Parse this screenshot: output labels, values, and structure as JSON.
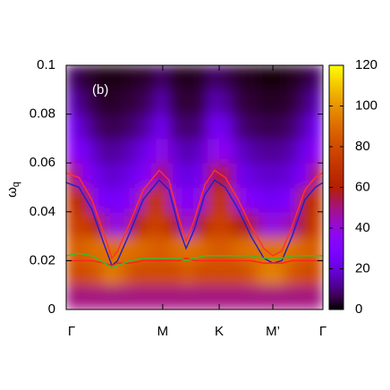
{
  "chart_data": {
    "type": "heatmap",
    "annotation": "(b)",
    "ylabel": {
      "base": "ω",
      "sub": "q"
    },
    "xlim": [
      0,
      1
    ],
    "xticks": [
      {
        "value": 0,
        "label": "Γ"
      },
      {
        "value": 0.376,
        "label": "M"
      },
      {
        "value": 0.596,
        "label": "K"
      },
      {
        "value": 0.805,
        "label": "M’"
      },
      {
        "value": 1,
        "label": "Γ"
      }
    ],
    "ylim": [
      0,
      0.1
    ],
    "yticks": [
      0,
      0.02,
      0.04,
      0.06,
      0.08,
      0.1
    ],
    "zlim": [
      0,
      120
    ],
    "zticks": [
      0,
      20,
      40,
      60,
      80,
      100,
      120
    ],
    "zx_edges": [
      0,
      0.05,
      0.1,
      0.15,
      0.2,
      0.25,
      0.3,
      0.35,
      0.4,
      0.45,
      0.5,
      0.55,
      0.6,
      0.65,
      0.7,
      0.75,
      0.8,
      0.85,
      0.9,
      0.95,
      1
    ],
    "zy_edges": [
      0,
      0.01,
      0.02,
      0.03,
      0.04,
      0.05,
      0.06,
      0.07,
      0.08,
      0.09,
      0.1
    ],
    "z": [
      [
        50,
        50,
        50,
        50,
        50,
        50,
        50,
        50,
        50,
        50,
        50,
        50,
        50,
        50,
        50,
        50,
        50,
        50,
        50,
        50
      ],
      [
        80,
        80,
        85,
        95,
        88,
        80,
        80,
        80,
        80,
        85,
        80,
        80,
        80,
        80,
        85,
        95,
        95,
        85,
        80,
        80
      ],
      [
        85,
        88,
        92,
        90,
        92,
        90,
        88,
        85,
        90,
        92,
        90,
        85,
        85,
        90,
        92,
        92,
        92,
        92,
        88,
        85
      ],
      [
        75,
        75,
        60,
        40,
        40,
        60,
        75,
        75,
        60,
        40,
        60,
        75,
        75,
        60,
        55,
        40,
        40,
        45,
        60,
        75
      ],
      [
        70,
        60,
        30,
        25,
        28,
        40,
        70,
        70,
        40,
        28,
        40,
        70,
        70,
        40,
        30,
        25,
        25,
        30,
        60,
        70
      ],
      [
        55,
        35,
        22,
        18,
        20,
        25,
        35,
        55,
        25,
        20,
        25,
        55,
        55,
        25,
        20,
        18,
        18,
        20,
        30,
        55
      ],
      [
        35,
        25,
        15,
        12,
        14,
        18,
        25,
        38,
        18,
        14,
        18,
        38,
        35,
        18,
        14,
        12,
        12,
        14,
        22,
        35
      ],
      [
        25,
        15,
        8,
        6,
        7,
        10,
        15,
        25,
        10,
        8,
        10,
        25,
        22,
        10,
        7,
        6,
        6,
        8,
        14,
        25
      ],
      [
        15,
        8,
        4,
        3,
        4,
        5,
        8,
        15,
        5,
        4,
        5,
        15,
        12,
        5,
        4,
        3,
        3,
        4,
        8,
        15
      ],
      [
        8,
        4,
        2,
        1,
        2,
        3,
        4,
        8,
        3,
        2,
        3,
        8,
        6,
        3,
        2,
        1,
        1,
        2,
        4,
        8
      ]
    ],
    "x": [
      0,
      0.05,
      0.1,
      0.15,
      0.178,
      0.2,
      0.25,
      0.3,
      0.362,
      0.4,
      0.44,
      0.467,
      0.5,
      0.54,
      0.578,
      0.62,
      0.67,
      0.72,
      0.77,
      0.805,
      0.84,
      0.88,
      0.93,
      0.97,
      1
    ],
    "series": [
      {
        "color": "#ff3030",
        "values": [
          0.056,
          0.054,
          0.045,
          0.03,
          0.021,
          0.024,
          0.036,
          0.049,
          0.057,
          0.053,
          0.037,
          0.028,
          0.037,
          0.051,
          0.057,
          0.054,
          0.045,
          0.034,
          0.025,
          0.022,
          0.024,
          0.034,
          0.049,
          0.054,
          0.056
        ]
      },
      {
        "color": "#2020c0",
        "values": [
          0.052,
          0.05,
          0.041,
          0.026,
          0.018,
          0.02,
          0.032,
          0.045,
          0.053,
          0.049,
          0.033,
          0.025,
          0.033,
          0.047,
          0.053,
          0.05,
          0.041,
          0.03,
          0.021,
          0.019,
          0.02,
          0.03,
          0.045,
          0.05,
          0.052
        ]
      },
      {
        "color": "#ff2020",
        "values": [
          0.02,
          0.02,
          0.02,
          0.019,
          0.018,
          0.019,
          0.019,
          0.02,
          0.02,
          0.02,
          0.02,
          0.021,
          0.02,
          0.02,
          0.02,
          0.02,
          0.02,
          0.02,
          0.019,
          0.019,
          0.019,
          0.02,
          0.02,
          0.02,
          0.02
        ]
      },
      {
        "color": "#30c030",
        "values": [
          0.022,
          0.023,
          0.022,
          0.019,
          0.017,
          0.018,
          0.02,
          0.021,
          0.021,
          0.021,
          0.021,
          0.02,
          0.021,
          0.022,
          0.022,
          0.022,
          0.022,
          0.022,
          0.021,
          0.021,
          0.021,
          0.022,
          0.022,
          0.022,
          0.022
        ]
      }
    ]
  }
}
